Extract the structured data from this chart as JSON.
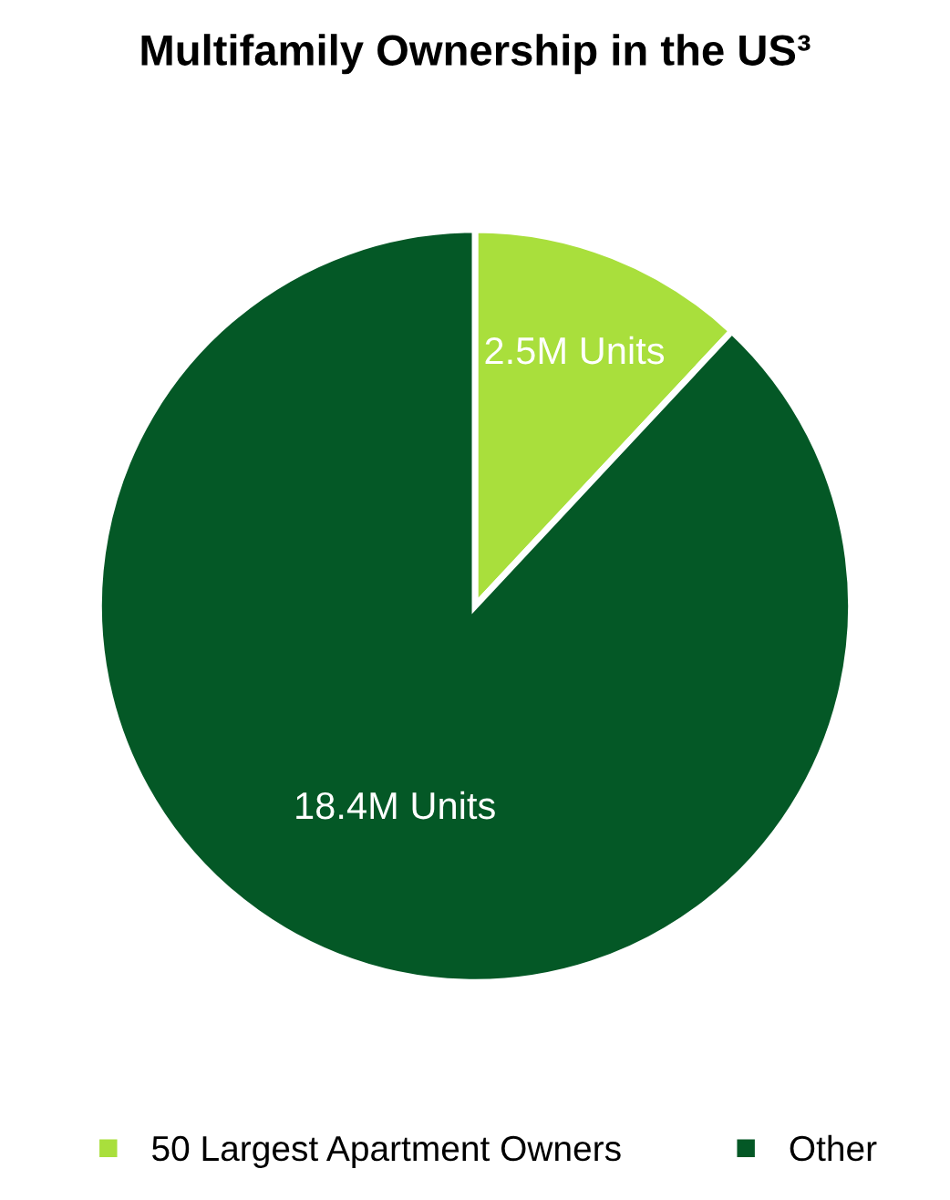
{
  "chart_data": {
    "type": "pie",
    "title": "Multifamily Ownership in the US³",
    "categories": [
      "50 Largest Apartment Owners",
      "Other"
    ],
    "values": [
      2.5,
      18.4
    ],
    "value_labels": [
      "2.5M Units",
      "18.4M Units"
    ],
    "colors": [
      "#a9df3c",
      "#045826"
    ],
    "legend": "bottom"
  }
}
